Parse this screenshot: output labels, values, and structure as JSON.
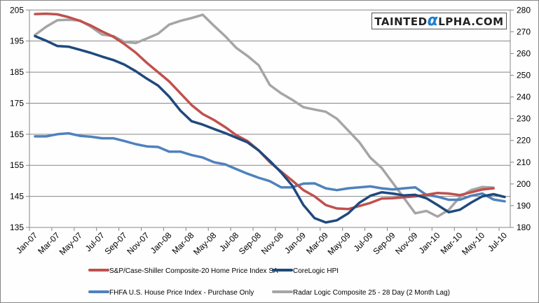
{
  "logo": {
    "pre": "TAINTED",
    "alpha": "α",
    "post": "LPHA.COM"
  },
  "chart_data": {
    "type": "line",
    "title": "",
    "x": [
      "Jan-07",
      "Feb-07",
      "Mar-07",
      "Apr-07",
      "May-07",
      "Jun-07",
      "Jul-07",
      "Aug-07",
      "Sep-07",
      "Oct-07",
      "Nov-07",
      "Dec-07",
      "Jan-08",
      "Feb-08",
      "Mar-08",
      "Apr-08",
      "May-08",
      "Jun-08",
      "Jul-08",
      "Aug-08",
      "Sep-08",
      "Oct-08",
      "Nov-08",
      "Dec-08",
      "Jan-09",
      "Feb-09",
      "Mar-09",
      "Apr-09",
      "May-09",
      "Jun-09",
      "Jul-09",
      "Aug-09",
      "Sep-09",
      "Oct-09",
      "Nov-09",
      "Dec-09",
      "Jan-10",
      "Feb-10",
      "Mar-10",
      "Apr-10",
      "May-10",
      "Jun-10",
      "Jul-10"
    ],
    "x_tick_labels": [
      "Jan-07",
      "Mar-07",
      "May-07",
      "Jul-07",
      "Sep-07",
      "Nov-07",
      "Jan-08",
      "Mar-08",
      "May-08",
      "Jul-08",
      "Sep-08",
      "Nov-08",
      "Jan-09",
      "Mar-09",
      "May-09",
      "Jul-09",
      "Sep-09",
      "Nov-09",
      "Jan-10",
      "Mar-10",
      "May-10",
      "Jul-10"
    ],
    "y_left": {
      "range": [
        135,
        205
      ],
      "ticks": [
        135,
        145,
        155,
        165,
        175,
        185,
        195,
        205
      ]
    },
    "y_right": {
      "range": [
        180,
        280
      ],
      "ticks": [
        180,
        190,
        200,
        210,
        220,
        230,
        240,
        250,
        260,
        270,
        280
      ]
    },
    "grid": true,
    "legend_position": "bottom",
    "series": [
      {
        "name": "S&P/Case-Shiller Composite-20 Home Price Index SA",
        "axis": "left",
        "color": "#c0504d",
        "values": [
          203.7,
          203.8,
          203.6,
          202.7,
          201.5,
          200.0,
          198.1,
          196.4,
          194.0,
          191.3,
          188.0,
          185.0,
          182.0,
          178.2,
          174.4,
          171.5,
          169.6,
          167.3,
          164.7,
          162.8,
          159.8,
          156.0,
          153.0,
          150.1,
          147.0,
          145.0,
          142.2,
          141.1,
          140.9,
          141.9,
          142.9,
          144.3,
          144.4,
          144.7,
          145.0,
          145.5,
          146.1,
          145.9,
          145.4,
          146.3,
          147.2,
          147.6,
          null
        ]
      },
      {
        "name": "CoreLogic HPI",
        "axis": "left",
        "color": "#1f497d",
        "values": [
          196.6,
          195.1,
          193.4,
          193.2,
          192.2,
          191.2,
          190.0,
          188.9,
          187.4,
          185.3,
          182.9,
          180.7,
          177.1,
          172.6,
          169.2,
          168.1,
          166.7,
          165.4,
          163.9,
          162.4,
          159.8,
          156.4,
          152.7,
          148.5,
          142.2,
          138.0,
          136.6,
          137.3,
          139.5,
          142.9,
          145.2,
          146.3,
          145.9,
          145.3,
          145.5,
          144.4,
          142.2,
          139.9,
          140.7,
          143.0,
          145.0,
          145.7,
          144.8
        ]
      },
      {
        "name": "FHFA U.S. House Price Index - Purchase Only",
        "axis": "left",
        "color": "#4f81bd",
        "values": [
          164.3,
          164.3,
          165.0,
          165.3,
          164.5,
          164.2,
          163.7,
          163.7,
          162.8,
          161.8,
          161.1,
          160.9,
          159.4,
          159.4,
          158.3,
          157.5,
          156.0,
          155.3,
          153.8,
          152.3,
          151.0,
          149.9,
          147.9,
          147.9,
          149.1,
          149.2,
          147.6,
          147.0,
          147.6,
          147.9,
          148.2,
          147.6,
          147.2,
          147.6,
          147.9,
          145.5,
          144.9,
          143.9,
          143.9,
          145.2,
          145.9,
          144.0,
          143.4
        ]
      },
      {
        "name": "Radar Logic Composite 25 - 28 Day (2 Month Lag)",
        "axis": "right",
        "color": "#a5a5a5",
        "values": [
          268.5,
          272.3,
          275.3,
          275.5,
          275.2,
          272.3,
          268.7,
          268.0,
          265.3,
          264.8,
          266.9,
          269.1,
          273.3,
          275.0,
          276.3,
          277.8,
          272.8,
          268.0,
          262.6,
          258.9,
          254.6,
          245.5,
          241.7,
          238.7,
          235.3,
          234.2,
          233.2,
          230.0,
          224.6,
          219.2,
          212.0,
          207.4,
          200.4,
          193.5,
          186.5,
          187.6,
          185.0,
          188.1,
          194.0,
          197.2,
          198.6,
          198.3,
          null
        ]
      }
    ]
  }
}
